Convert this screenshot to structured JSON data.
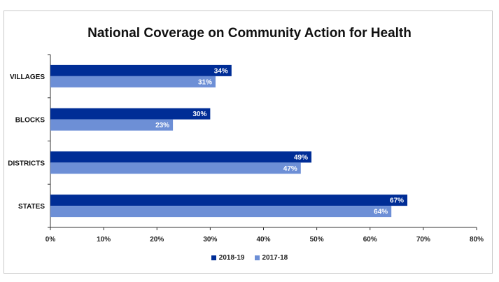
{
  "chart_data": {
    "type": "bar",
    "orientation": "horizontal",
    "title": "National Coverage on Community Action for Health",
    "categories": [
      "VILLAGES",
      "BLOCKS",
      "DISTRICTS",
      "STATES"
    ],
    "series": [
      {
        "name": "2018-19",
        "values": [
          34,
          30,
          49,
          67
        ],
        "labels": [
          "34%",
          "30%",
          "49%",
          "67%"
        ],
        "color": "#002d96"
      },
      {
        "name": "2017-18",
        "values": [
          31,
          23,
          47,
          64
        ],
        "labels": [
          "31%",
          "23%",
          "47%",
          "64%"
        ],
        "color": "#6d8fd6"
      }
    ],
    "xlim": [
      0,
      80
    ],
    "xticks": [
      "0%",
      "10%",
      "20%",
      "30%",
      "40%",
      "50%",
      "60%",
      "70%",
      "80%"
    ],
    "grid": false,
    "legend_position": "bottom"
  }
}
